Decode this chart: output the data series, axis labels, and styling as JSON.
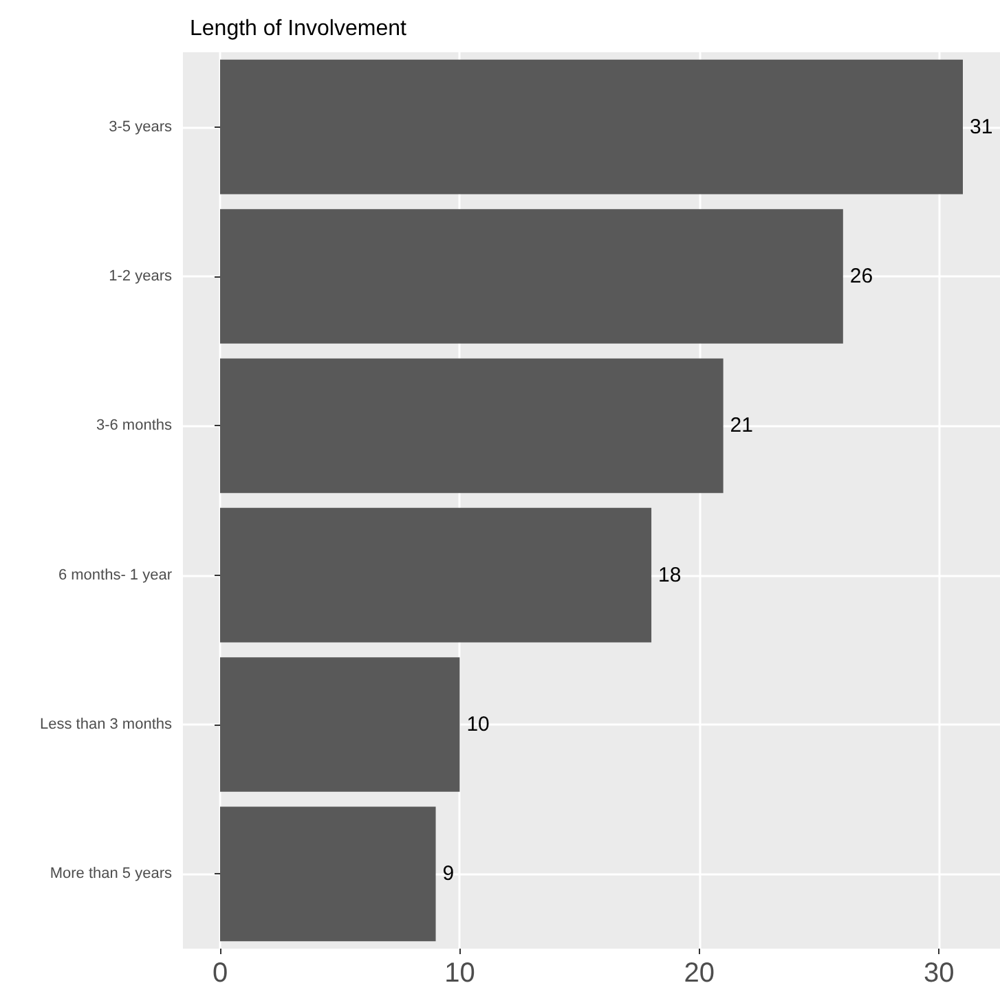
{
  "chart_data": {
    "type": "bar",
    "orientation": "horizontal",
    "title": "Length of Involvement",
    "categories": [
      "3-5 years",
      "1-2 years",
      "3-6 months",
      "6 months- 1 year",
      "Less than 3 months",
      "More than 5 years"
    ],
    "values": [
      31,
      26,
      21,
      18,
      10,
      9
    ],
    "color": "#595959",
    "xlim": [
      -1.55,
      32.55
    ],
    "xticks": [
      0,
      10,
      20,
      30
    ],
    "grid": true,
    "data_labels": true
  }
}
